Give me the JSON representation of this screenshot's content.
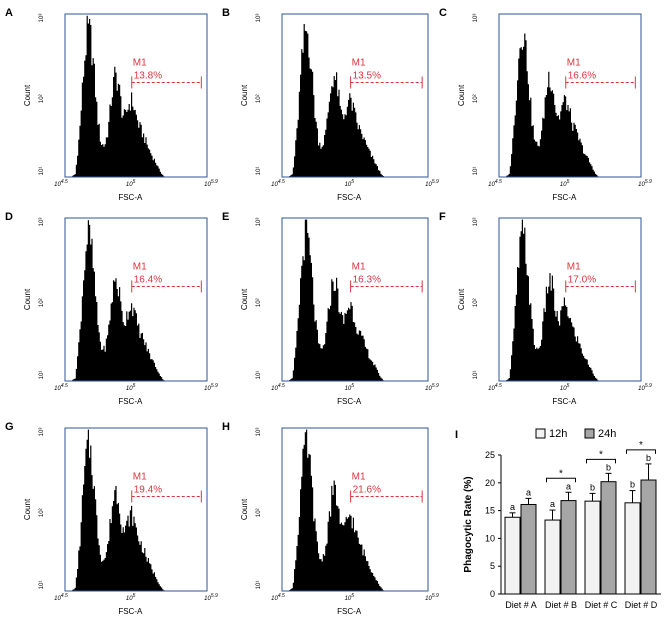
{
  "figure": {
    "histograms": [
      {
        "letter": "A",
        "marker": "M1",
        "percent": "13.8%",
        "ylabel": "Count",
        "xlabel": "FSC-A",
        "yticks": [
          "10³",
          "10²",
          "10¹"
        ],
        "xticks": [
          "10^4.5",
          "10^5",
          "10^5.9"
        ]
      },
      {
        "letter": "B",
        "marker": "M1",
        "percent": "13.5%",
        "ylabel": "Count",
        "xlabel": "FSC-A",
        "yticks": [
          "10³",
          "10²",
          "10¹"
        ],
        "xticks": [
          "10^4.5",
          "10^5",
          "10^5.9"
        ]
      },
      {
        "letter": "C",
        "marker": "M1",
        "percent": "16.6%",
        "ylabel": "Count",
        "xlabel": "FSC-A",
        "yticks": [
          "10³",
          "10²",
          "10¹"
        ],
        "xticks": [
          "10^4.5",
          "10^5",
          "10^5.9"
        ]
      },
      {
        "letter": "D",
        "marker": "M1",
        "percent": "16.4%",
        "ylabel": "Count",
        "xlabel": "FSC-A",
        "yticks": [
          "10³",
          "10²",
          "10¹"
        ],
        "xticks": [
          "10^4.5",
          "10^5",
          "10^5.9"
        ]
      },
      {
        "letter": "E",
        "marker": "M1",
        "percent": "16.3%",
        "ylabel": "Count",
        "xlabel": "FSC-A",
        "yticks": [
          "10³",
          "10²",
          "10¹"
        ],
        "xticks": [
          "10^4.5",
          "10^5",
          "10^5.9"
        ]
      },
      {
        "letter": "F",
        "marker": "M1",
        "percent": "17.0%",
        "ylabel": "Count",
        "xlabel": "FSC-A",
        "yticks": [
          "10³",
          "10²",
          "10¹"
        ],
        "xticks": [
          "10^4.5",
          "10^5",
          "10^5.9"
        ]
      },
      {
        "letter": "G",
        "marker": "M1",
        "percent": "19.4%",
        "ylabel": "Count",
        "xlabel": "FSC-A",
        "yticks": [
          "10³",
          "10²",
          "10¹"
        ],
        "xticks": [
          "10^4.5",
          "10^5",
          "10^5.9"
        ]
      },
      {
        "letter": "H",
        "marker": "M1",
        "percent": "21.6%",
        "ylabel": "Count",
        "xlabel": "FSC-A",
        "yticks": [
          "10³",
          "10²",
          "10¹"
        ],
        "xticks": [
          "10^4.5",
          "10^5",
          "10^5.9"
        ]
      }
    ],
    "colors": {
      "histogram_fill": "#000000",
      "frame": "#2f5597",
      "marker": "#d9363e",
      "bar_12h": "#f2f2f2",
      "bar_24h": "#a6a6a6"
    }
  },
  "chart_data": {
    "type": "bar",
    "panel": "I",
    "title": "",
    "ylabel": "Phagocytic Rate (%)",
    "xlabel": "",
    "categories": [
      "Diet # A",
      "Diet # B",
      "Diet # C",
      "Diet # D"
    ],
    "ylim": [
      0,
      25
    ],
    "yticks": [
      0,
      5,
      10,
      15,
      20,
      25
    ],
    "legend": "top",
    "grid": false,
    "series": [
      {
        "name": "12h",
        "values": [
          13.8,
          13.3,
          16.7,
          16.4
        ],
        "errors": [
          0.8,
          1.8,
          1.4,
          2.2
        ],
        "labels": [
          "a",
          "a",
          "b",
          "b"
        ],
        "color": "#f2f2f2"
      },
      {
        "name": "24h",
        "values": [
          16.1,
          16.8,
          20.2,
          20.5
        ],
        "errors": [
          1.1,
          1.5,
          1.5,
          2.9
        ],
        "labels": [
          "a",
          "a",
          "b",
          "b"
        ],
        "color": "#a6a6a6"
      }
    ],
    "significance": {
      "label": "*",
      "categories": [
        "Diet # B",
        "Diet # C",
        "Diet # D"
      ]
    }
  }
}
